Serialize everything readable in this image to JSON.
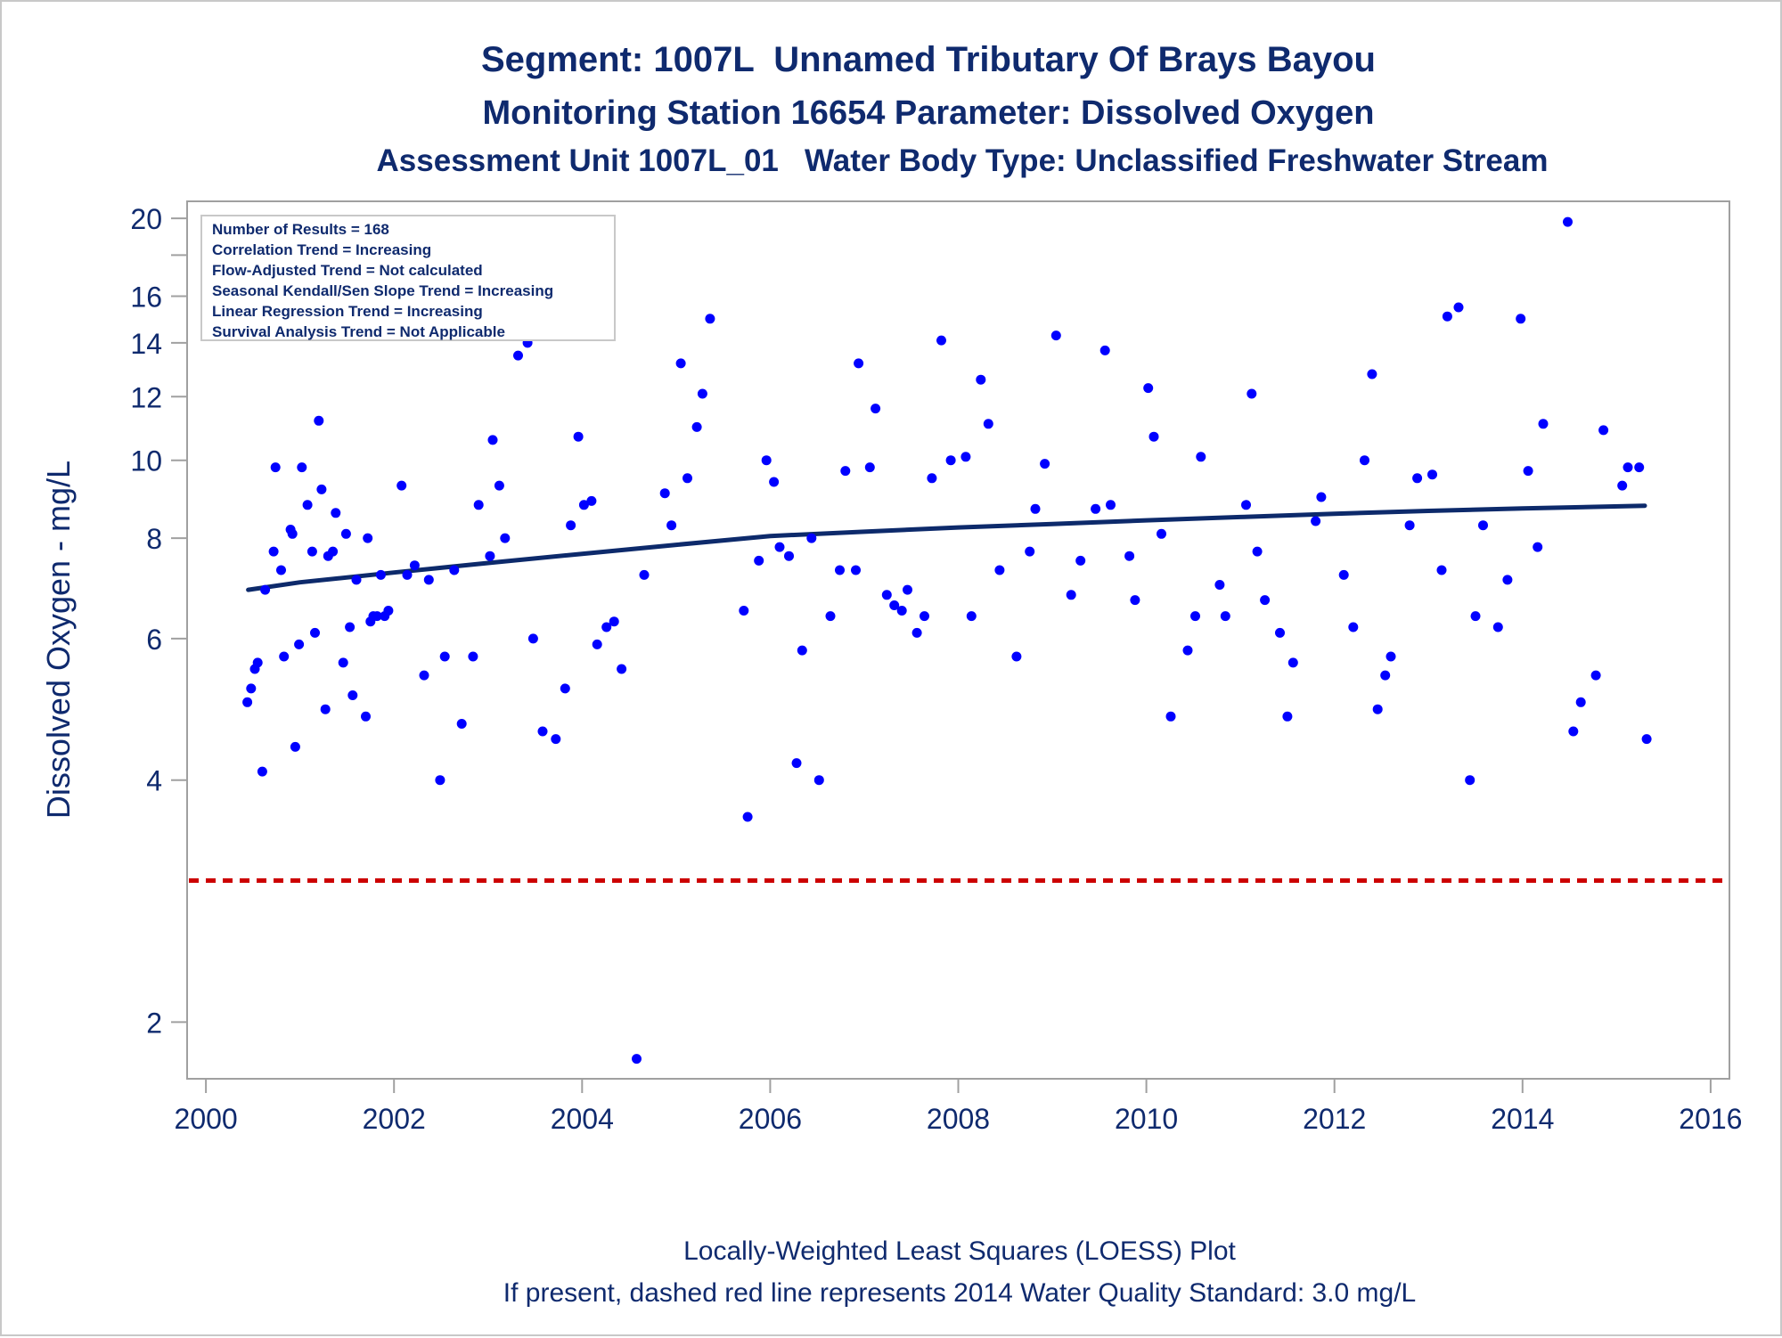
{
  "colors": {
    "text": "#0f2a6e",
    "points": "#0000ff",
    "loess": "#0d2a6b",
    "standard_line": "#cc0000",
    "axis": "#a0a0a0"
  },
  "chart_data": {
    "type": "scatter",
    "title": "Segment: 1007L  Unnamed Tributary Of Brays Bayou",
    "subtitle": "Monitoring Station 16654 Parameter: Dissolved Oxygen",
    "subtitle2": "Assessment Unit 1007L_01   Water Body Type: Unclassified Freshwater Stream",
    "xlabel": "",
    "ylabel": "Dissolved Oxygen - mg/L",
    "y_scale": "log",
    "xlim": [
      1999.8,
      2016.2
    ],
    "ylim": [
      1.7,
      21.0
    ],
    "x_ticks": [
      "2000",
      "2002",
      "2004",
      "2006",
      "2008",
      "2010",
      "2012",
      "2014",
      "2016"
    ],
    "y_ticks": [
      "2",
      "4",
      "6",
      "8",
      "10",
      "12",
      "14",
      "16",
      "20"
    ],
    "y_minor_ticks": [
      18
    ],
    "legend_box": {
      "placement": "top-left",
      "lines": [
        "Number of Results = 168",
        "Correlation Trend = Increasing",
        "Flow-Adjusted Trend = Not calculated",
        "Seasonal Kendall/Sen Slope Trend = Increasing",
        "Linear Regression Trend = Increasing",
        "Survival Analysis Trend = Not Applicable"
      ]
    },
    "footnotes": [
      "Locally-Weighted Least Squares (LOESS) Plot",
      "If present, dashed red line represents 2014 Water Quality Standard: 3.0 mg/L"
    ],
    "reference_line": {
      "y": 3.0,
      "style": "dashed"
    },
    "loess": {
      "x": [
        2000.45,
        2001,
        2002,
        2003,
        2004,
        2005,
        2006,
        2007,
        2008,
        2009,
        2010,
        2011,
        2012,
        2013,
        2014,
        2015.3
      ],
      "y": [
        6.9,
        7.05,
        7.25,
        7.45,
        7.65,
        7.85,
        8.05,
        8.15,
        8.25,
        8.33,
        8.42,
        8.5,
        8.58,
        8.65,
        8.71,
        8.78
      ]
    },
    "series": [
      {
        "points": [
          [
            2000.44,
            5.0
          ],
          [
            2000.48,
            5.2
          ],
          [
            2000.52,
            5.5
          ],
          [
            2000.55,
            5.6
          ],
          [
            2000.6,
            4.1
          ],
          [
            2000.63,
            6.9
          ],
          [
            2000.72,
            7.7
          ],
          [
            2000.74,
            9.8
          ],
          [
            2000.8,
            7.3
          ],
          [
            2000.83,
            5.7
          ],
          [
            2000.9,
            8.2
          ],
          [
            2000.92,
            8.1
          ],
          [
            2000.95,
            4.4
          ],
          [
            2000.99,
            5.9
          ],
          [
            2001.02,
            9.8
          ],
          [
            2001.08,
            8.8
          ],
          [
            2001.13,
            7.7
          ],
          [
            2001.16,
            6.1
          ],
          [
            2001.2,
            11.2
          ],
          [
            2001.23,
            9.2
          ],
          [
            2001.27,
            4.9
          ],
          [
            2001.3,
            7.6
          ],
          [
            2001.35,
            7.7
          ],
          [
            2001.38,
            8.6
          ],
          [
            2001.46,
            5.6
          ],
          [
            2001.49,
            8.1
          ],
          [
            2001.53,
            6.2
          ],
          [
            2001.56,
            5.1
          ],
          [
            2001.6,
            7.1
          ],
          [
            2001.7,
            4.8
          ],
          [
            2001.72,
            8.0
          ],
          [
            2001.75,
            6.3
          ],
          [
            2001.78,
            6.4
          ],
          [
            2001.82,
            6.4
          ],
          [
            2001.86,
            7.2
          ],
          [
            2001.9,
            6.4
          ],
          [
            2001.94,
            6.5
          ],
          [
            2002.08,
            9.3
          ],
          [
            2002.14,
            7.2
          ],
          [
            2002.22,
            7.4
          ],
          [
            2002.32,
            5.4
          ],
          [
            2002.37,
            7.1
          ],
          [
            2002.49,
            4.0
          ],
          [
            2002.54,
            5.7
          ],
          [
            2002.64,
            7.3
          ],
          [
            2002.72,
            4.7
          ],
          [
            2002.84,
            5.7
          ],
          [
            2002.9,
            8.8
          ],
          [
            2003.02,
            7.6
          ],
          [
            2003.05,
            10.6
          ],
          [
            2003.12,
            9.3
          ],
          [
            2003.18,
            8.0
          ],
          [
            2003.32,
            13.5
          ],
          [
            2003.42,
            14.0
          ],
          [
            2003.48,
            6.0
          ],
          [
            2003.58,
            4.6
          ],
          [
            2003.72,
            4.5
          ],
          [
            2003.82,
            5.2
          ],
          [
            2003.88,
            8.3
          ],
          [
            2003.96,
            10.7
          ],
          [
            2004.02,
            8.8
          ],
          [
            2004.1,
            8.9
          ],
          [
            2004.16,
            5.9
          ],
          [
            2004.26,
            6.2
          ],
          [
            2004.34,
            6.3
          ],
          [
            2004.42,
            5.5
          ],
          [
            2004.58,
            1.8
          ],
          [
            2004.66,
            7.2
          ],
          [
            2004.88,
            9.1
          ],
          [
            2004.95,
            8.3
          ],
          [
            2005.05,
            13.2
          ],
          [
            2005.12,
            9.5
          ],
          [
            2005.22,
            11.0
          ],
          [
            2005.28,
            12.1
          ],
          [
            2005.36,
            15.0
          ],
          [
            2005.72,
            6.5
          ],
          [
            2005.76,
            3.6
          ],
          [
            2005.88,
            7.5
          ],
          [
            2005.96,
            10.0
          ],
          [
            2006.04,
            9.4
          ],
          [
            2006.1,
            7.8
          ],
          [
            2006.2,
            7.6
          ],
          [
            2006.28,
            4.2
          ],
          [
            2006.34,
            5.8
          ],
          [
            2006.44,
            8.0
          ],
          [
            2006.52,
            4.0
          ],
          [
            2006.64,
            6.4
          ],
          [
            2006.74,
            7.3
          ],
          [
            2006.8,
            9.7
          ],
          [
            2006.91,
            7.3
          ],
          [
            2006.94,
            13.2
          ],
          [
            2007.06,
            9.8
          ],
          [
            2007.12,
            11.6
          ],
          [
            2007.24,
            6.8
          ],
          [
            2007.32,
            6.6
          ],
          [
            2007.4,
            6.5
          ],
          [
            2007.46,
            6.9
          ],
          [
            2007.56,
            6.1
          ],
          [
            2007.64,
            6.4
          ],
          [
            2007.72,
            9.5
          ],
          [
            2007.82,
            14.1
          ],
          [
            2007.92,
            10.0
          ],
          [
            2008.08,
            10.1
          ],
          [
            2008.14,
            6.4
          ],
          [
            2008.24,
            12.6
          ],
          [
            2008.32,
            11.1
          ],
          [
            2008.44,
            7.3
          ],
          [
            2008.62,
            5.7
          ],
          [
            2008.76,
            7.7
          ],
          [
            2008.82,
            8.7
          ],
          [
            2008.92,
            9.9
          ],
          [
            2009.04,
            14.3
          ],
          [
            2009.2,
            6.8
          ],
          [
            2009.3,
            7.5
          ],
          [
            2009.46,
            8.7
          ],
          [
            2009.56,
            13.7
          ],
          [
            2009.62,
            8.8
          ],
          [
            2009.82,
            7.6
          ],
          [
            2009.88,
            6.7
          ],
          [
            2010.02,
            12.3
          ],
          [
            2010.08,
            10.7
          ],
          [
            2010.16,
            8.1
          ],
          [
            2010.26,
            4.8
          ],
          [
            2010.44,
            5.8
          ],
          [
            2010.52,
            6.4
          ],
          [
            2010.58,
            10.1
          ],
          [
            2010.78,
            7.0
          ],
          [
            2010.84,
            6.4
          ],
          [
            2011.06,
            8.8
          ],
          [
            2011.12,
            12.1
          ],
          [
            2011.18,
            7.7
          ],
          [
            2011.26,
            6.7
          ],
          [
            2011.42,
            6.1
          ],
          [
            2011.5,
            4.8
          ],
          [
            2011.56,
            5.6
          ],
          [
            2011.8,
            8.4
          ],
          [
            2011.86,
            9.0
          ],
          [
            2012.1,
            7.2
          ],
          [
            2012.2,
            6.2
          ],
          [
            2012.32,
            10.0
          ],
          [
            2012.4,
            12.8
          ],
          [
            2012.46,
            4.9
          ],
          [
            2012.54,
            5.4
          ],
          [
            2012.6,
            5.7
          ],
          [
            2012.8,
            8.3
          ],
          [
            2012.88,
            9.5
          ],
          [
            2013.04,
            9.6
          ],
          [
            2013.14,
            7.3
          ],
          [
            2013.2,
            15.1
          ],
          [
            2013.32,
            15.5
          ],
          [
            2013.44,
            4.0
          ],
          [
            2013.5,
            6.4
          ],
          [
            2013.58,
            8.3
          ],
          [
            2013.74,
            6.2
          ],
          [
            2013.84,
            7.1
          ],
          [
            2013.98,
            15.0
          ],
          [
            2014.06,
            9.7
          ],
          [
            2014.16,
            7.8
          ],
          [
            2014.22,
            11.1
          ],
          [
            2014.48,
            19.8
          ],
          [
            2014.54,
            4.6
          ],
          [
            2014.62,
            5.0
          ],
          [
            2014.78,
            5.4
          ],
          [
            2014.86,
            10.9
          ],
          [
            2015.06,
            9.3
          ],
          [
            2015.12,
            9.8
          ],
          [
            2015.24,
            9.8
          ],
          [
            2015.32,
            4.5
          ]
        ]
      }
    ]
  }
}
